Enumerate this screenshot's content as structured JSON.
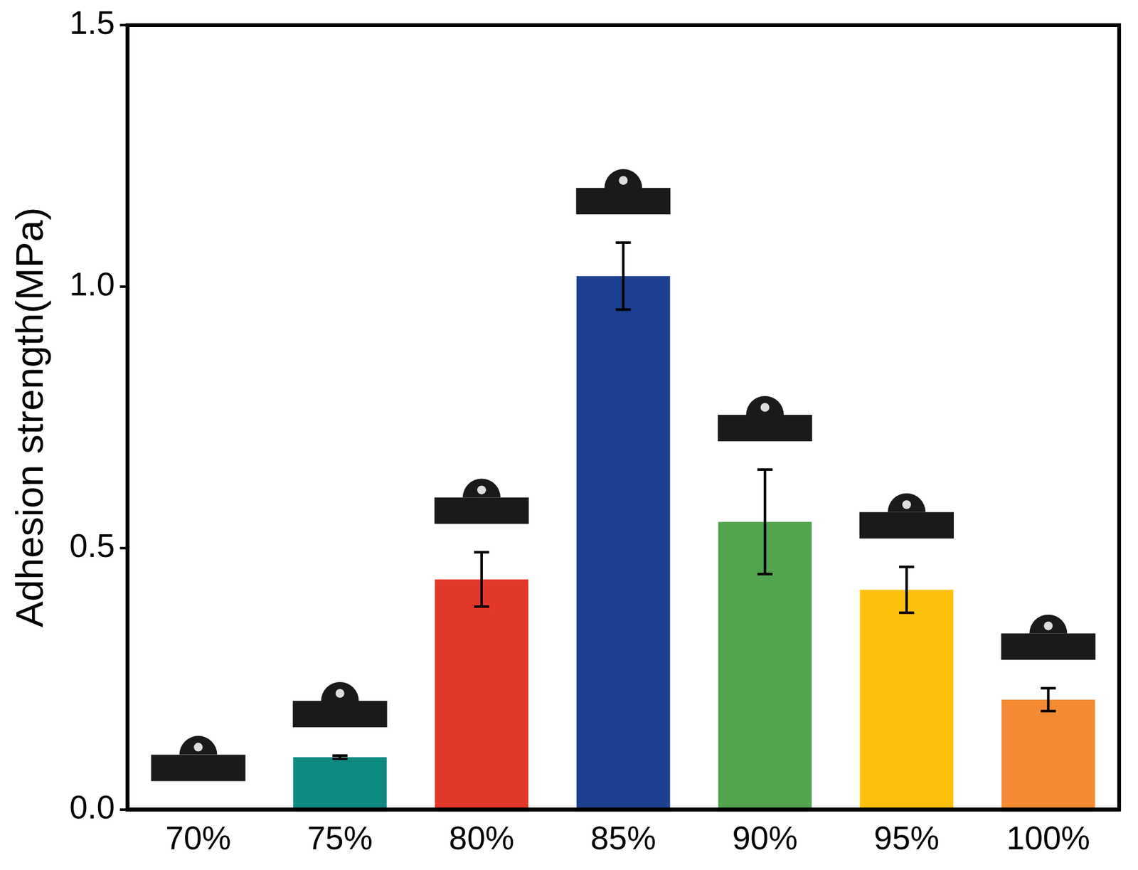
{
  "chart_data": {
    "type": "bar",
    "y_label": "Adhesion strength(MPa)",
    "categories": [
      "70%",
      "75%",
      "80%",
      "85%",
      "90%",
      "95%",
      "100%"
    ],
    "values": [
      0,
      0.1,
      0.44,
      1.02,
      0.55,
      0.42,
      0.21
    ],
    "errors": [
      0,
      0.003,
      0.052,
      0.064,
      0.1,
      0.044,
      0.022
    ],
    "colors": [
      "#808080",
      "#0e8a80",
      "#e2382a",
      "#1d3f8f",
      "#52a44f",
      "#fcc10d",
      "#f38b35"
    ],
    "ylim": [
      0,
      1.5
    ],
    "yticks": [
      {
        "value": 0,
        "label": "0.0"
      },
      0.5,
      {
        "value": 1,
        "label": "1.0"
      },
      {
        "value": 1.5,
        "label": "1.5"
      }
    ],
    "grid": false
  }
}
